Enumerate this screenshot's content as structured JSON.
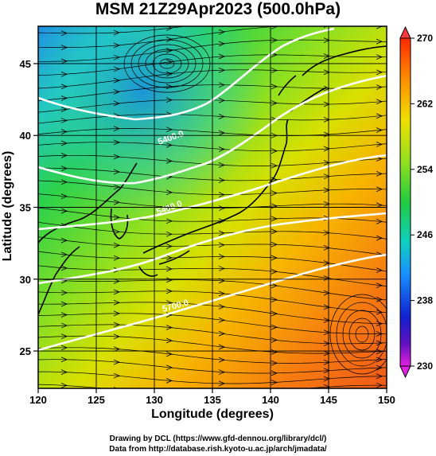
{
  "title": "MSM 21Z29Apr2023 (500.0hPa)",
  "chart_data": {
    "type": "heatmap",
    "title": "MSM 21Z29Apr2023 (500.0hPa)",
    "xlabel": "Longitude (degrees)",
    "ylabel": "Latitude  (degrees)",
    "xlim": [
      120,
      150
    ],
    "ylim": [
      22.4,
      47.6
    ],
    "x_ticks": [
      "120",
      "125",
      "130",
      "135",
      "140",
      "145",
      "150"
    ],
    "y_ticks": [
      "25",
      "30",
      "35",
      "40",
      "45"
    ],
    "colorbar": {
      "ticks": [
        "270",
        "262",
        "254",
        "246",
        "238",
        "230"
      ],
      "range": [
        230,
        270
      ]
    },
    "contour_labels": [
      "5400.0",
      "5400.0",
      "5700.0"
    ],
    "grid": true
  },
  "credits": {
    "line1": "Drawing by DCL (https://www.gfd-dennou.org/library/dcl/)",
    "line2": "Data from http://database.rish.kyoto-u.ac.jp/arch/jmadata/"
  }
}
